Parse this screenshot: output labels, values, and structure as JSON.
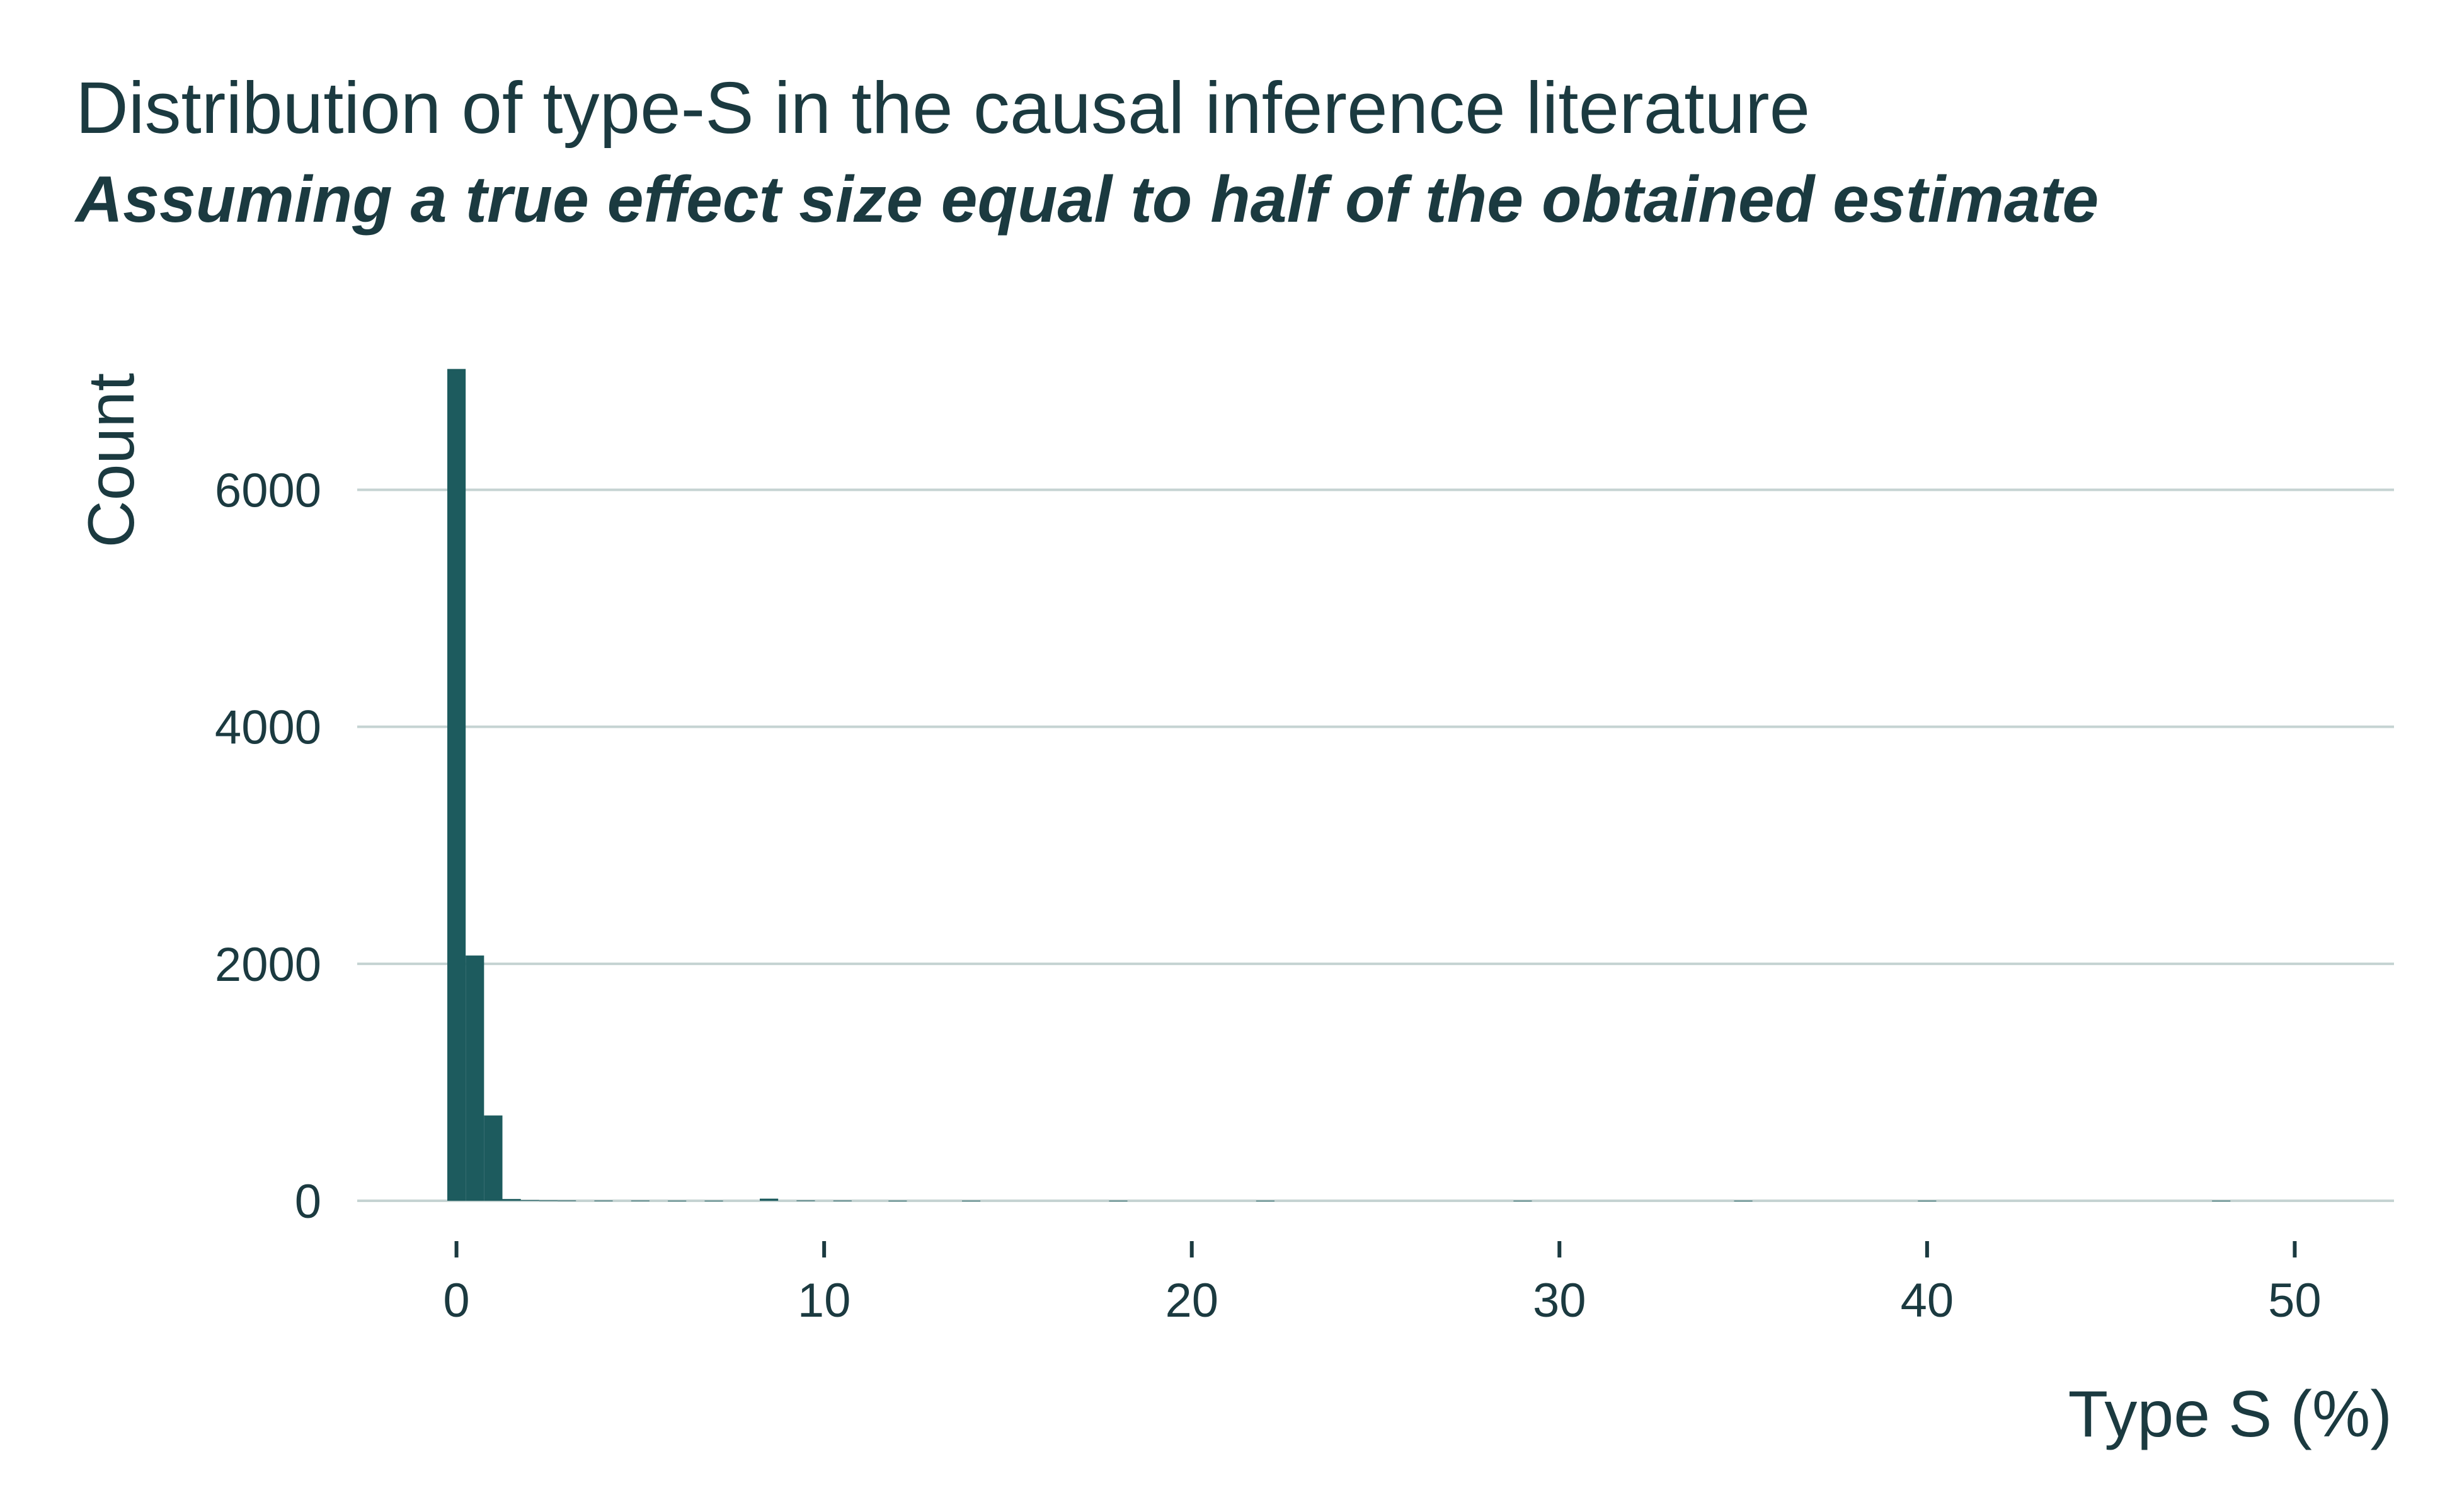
{
  "colors": {
    "bar": "#1d5b5e",
    "grid": "#c5d3d2",
    "text": "#1b3a40"
  },
  "chart_data": {
    "type": "bar",
    "title": "Distribution of type-S in the causal inference literature",
    "subtitle": "Assuming a true effect size equal to half of the obtained estimate",
    "xlabel": "Type S (%)",
    "ylabel": "Count",
    "xlim": [
      -2.7,
      52.7
    ],
    "ylim": [
      0,
      7050
    ],
    "x_ticks": [
      0,
      10,
      20,
      30,
      40,
      50
    ],
    "y_ticks": [
      0,
      2000,
      4000,
      6000
    ],
    "grid": "horizontal",
    "bin_width": 0.5,
    "bins": [
      {
        "x": 0.0,
        "count": 7020
      },
      {
        "x": 0.5,
        "count": 2070
      },
      {
        "x": 1.0,
        "count": 720
      },
      {
        "x": 1.5,
        "count": 15
      },
      {
        "x": 2.0,
        "count": 6
      },
      {
        "x": 2.5,
        "count": 4
      },
      {
        "x": 3.0,
        "count": 3
      },
      {
        "x": 4.0,
        "count": 2
      },
      {
        "x": 5.0,
        "count": 2
      },
      {
        "x": 6.0,
        "count": 1
      },
      {
        "x": 7.0,
        "count": 1
      },
      {
        "x": 8.5,
        "count": 18
      },
      {
        "x": 9.5,
        "count": 3
      },
      {
        "x": 10.5,
        "count": 2
      },
      {
        "x": 12.0,
        "count": 1
      },
      {
        "x": 14.0,
        "count": 1
      },
      {
        "x": 18.0,
        "count": 1
      },
      {
        "x": 22.0,
        "count": 1
      },
      {
        "x": 29.0,
        "count": 1
      },
      {
        "x": 35.0,
        "count": 1
      },
      {
        "x": 40.0,
        "count": 1
      },
      {
        "x": 48.0,
        "count": 1
      }
    ]
  }
}
